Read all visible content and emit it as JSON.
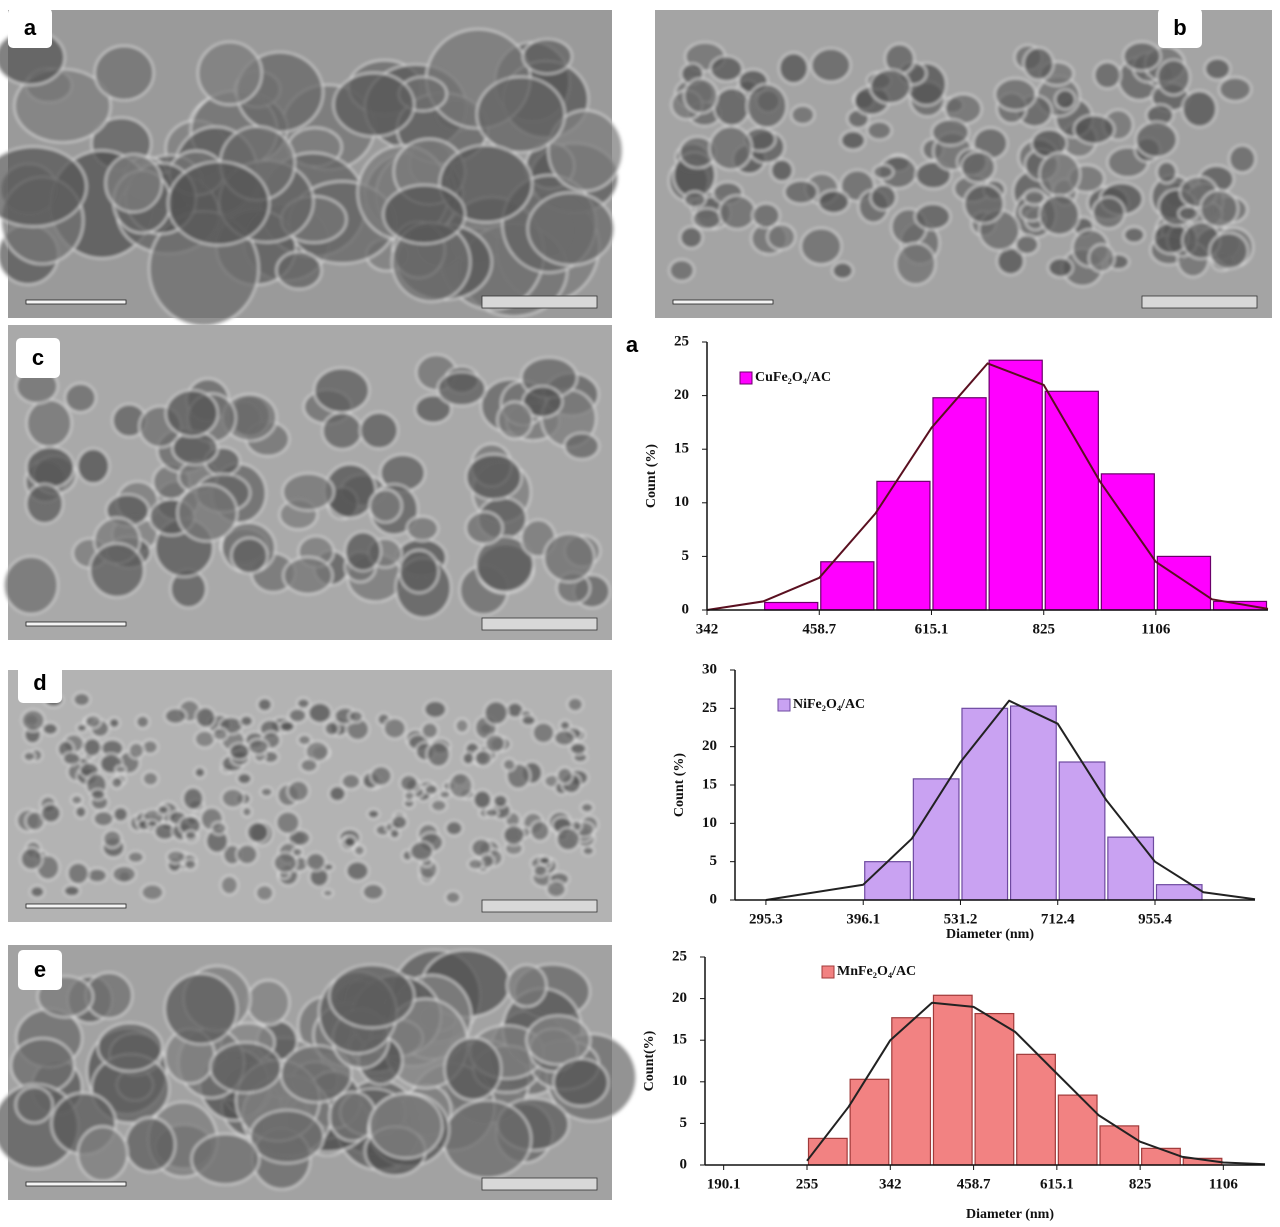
{
  "panels": [
    "a",
    "b",
    "c",
    "d",
    "e"
  ],
  "chart_data": [
    {
      "type": "histogram",
      "panel_label": "a",
      "y_label": "Count (%)",
      "log_x": true,
      "xlim": [
        342,
        1483
      ],
      "xticks": [
        342,
        458.7,
        615.1,
        825,
        1106
      ],
      "ylim": [
        0,
        25
      ],
      "yticks": [
        0,
        5,
        10,
        15,
        20,
        25
      ],
      "bins": [
        396.1,
        458.7,
        531.2,
        615.1,
        712.4,
        825,
        955.4,
        1106,
        1281,
        1483
      ],
      "series": [
        {
          "name": "CuFe₂O₄/AC",
          "color": "#ff00ff",
          "edge": "#6a006a",
          "values": [
            0.7,
            4.5,
            12,
            19.8,
            23.3,
            20.4,
            12.7,
            5,
            0.8
          ]
        }
      ],
      "fit": {
        "color": "#5a1020",
        "x": [
          342,
          396.1,
          458.7,
          531.2,
          615.1,
          712.4,
          825,
          955.4,
          1106,
          1281,
          1483
        ],
        "values": [
          0,
          0.8,
          3,
          9,
          17,
          23,
          21,
          12,
          4.5,
          1,
          0.1
        ]
      }
    },
    {
      "type": "histogram",
      "y_label": "Count (%)",
      "x_label": "Diameter (nm)",
      "log_x": true,
      "xlim": [
        269,
        1292
      ],
      "xticks": [
        295.3,
        396.1,
        531.2,
        712.4,
        955.4
      ],
      "ylim": [
        0,
        30
      ],
      "yticks": [
        0,
        5,
        10,
        15,
        20,
        25,
        30
      ],
      "bins": [
        396.1,
        458.7,
        531.2,
        615.1,
        712.4,
        825,
        955.4,
        1106
      ],
      "series": [
        {
          "name": "NiFe₂O₄/AC",
          "color": "#c9a2f2",
          "edge": "#6e4aa0",
          "values": [
            5,
            15.8,
            25,
            25.3,
            18,
            8.2,
            2
          ]
        }
      ],
      "fit": {
        "color": "#222222",
        "x": [
          295.3,
          396.1,
          458.7,
          531.2,
          615.1,
          712.4,
          825,
          955.4,
          1106,
          1292
        ],
        "values": [
          0,
          2,
          8,
          18,
          26,
          23,
          13,
          5,
          1,
          0.1
        ]
      }
    },
    {
      "type": "histogram",
      "y_label": "Count(%)",
      "x_label": "Diameter (nm)",
      "log_x": true,
      "xlim": [
        178,
        1281
      ],
      "xticks": [
        190.1,
        255,
        342,
        458.7,
        615.1,
        825,
        1106
      ],
      "ylim": [
        0,
        25
      ],
      "yticks": [
        0,
        5,
        10,
        15,
        20,
        25
      ],
      "bins": [
        255,
        295.3,
        342,
        396.1,
        458.7,
        531.2,
        615.1,
        712.4,
        825,
        955.4,
        1106
      ],
      "series": [
        {
          "name": "MnFe₂O₄/AC",
          "color": "#f28282",
          "edge": "#a03a3a",
          "values": [
            3.2,
            10.3,
            17.7,
            20.4,
            18.2,
            13.3,
            8.4,
            4.7,
            2,
            0.8
          ]
        }
      ],
      "fit": {
        "color": "#222222",
        "x": [
          255,
          295.3,
          342,
          396.1,
          458.7,
          531.2,
          615.1,
          712.4,
          825,
          955.4,
          1106,
          1281
        ],
        "values": [
          0.5,
          7,
          15,
          19.5,
          19,
          16,
          11,
          6,
          2.8,
          1,
          0.3,
          0.1
        ]
      }
    }
  ]
}
